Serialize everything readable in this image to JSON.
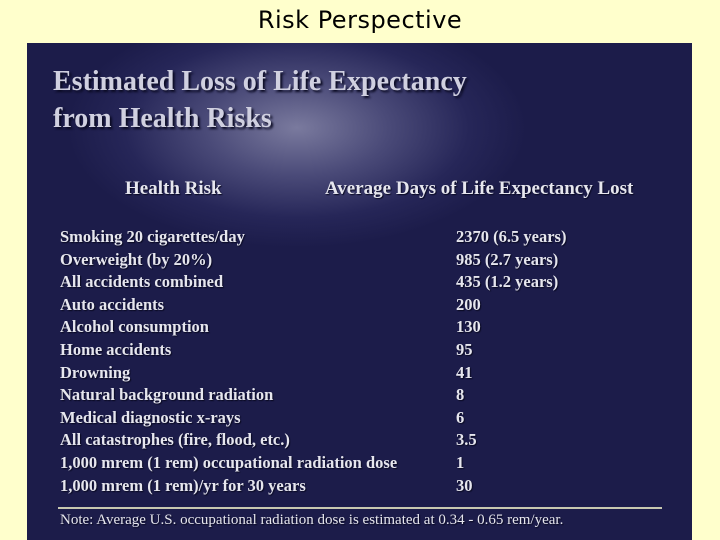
{
  "page": {
    "title": "Risk Perspective"
  },
  "slide": {
    "heading_line1": "Estimated Loss of Life Expectancy",
    "heading_line2": "from Health Risks",
    "column_headers": {
      "risk": "Health Risk",
      "days": "Average Days of Life Expectancy Lost"
    },
    "rows": [
      {
        "risk": "Smoking 20 cigarettes/day",
        "days": "2370 (6.5 years)"
      },
      {
        "risk": "Overweight (by 20%)",
        "days": "985  (2.7 years)"
      },
      {
        "risk": "All accidents combined",
        "days": "435  (1.2 years)"
      },
      {
        "risk": "Auto accidents",
        "days": "200"
      },
      {
        "risk": "Alcohol consumption",
        "days": "130"
      },
      {
        "risk": "Home accidents",
        "days": "95"
      },
      {
        "risk": "Drowning",
        "days": "41"
      },
      {
        "risk": "Natural background radiation",
        "days": "8"
      },
      {
        "risk": "Medical diagnostic x-rays",
        "days": "6"
      },
      {
        "risk": "All catastrophes (fire, flood, etc.)",
        "days": "3.5"
      },
      {
        "risk": "1,000 mrem (1 rem) occupational radiation dose",
        "days": "1"
      },
      {
        "risk": "1,000 mrem (1 rem)/yr for 30 years",
        "days": "30"
      }
    ],
    "note": "Note: Average U.S. occupational radiation dose is estimated at 0.34 - 0.65 rem/year."
  },
  "colors": {
    "page_background": "#ffffcc",
    "slide_background": "#1c1c4a",
    "slide_text": "#e6e6ee"
  }
}
